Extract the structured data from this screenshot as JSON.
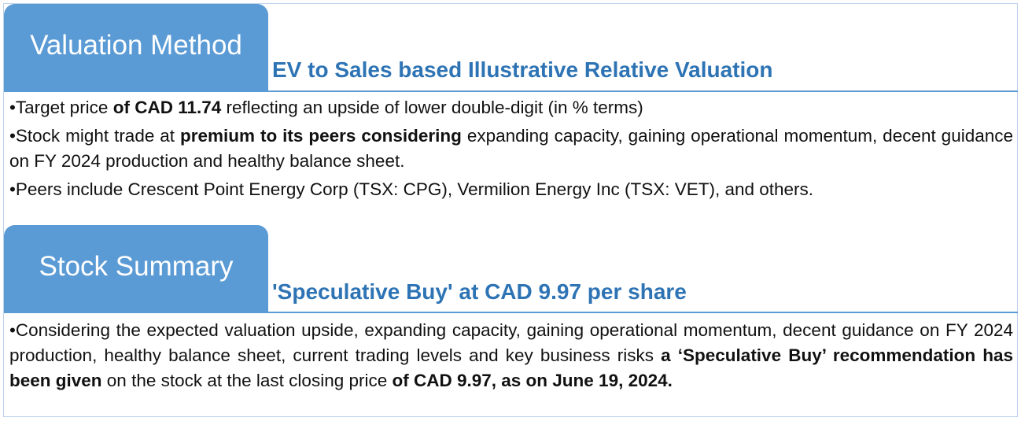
{
  "valuation": {
    "tab_label": "Valuation Method",
    "subtitle": "EV to Sales based Illustrative Relative Valuation",
    "bullets": [
      [
        {
          "t": "Target price ",
          "b": false
        },
        {
          "t": "of CAD 11.74",
          "b": true
        },
        {
          "t": " reflecting an upside of lower double-digit (in % terms)",
          "b": false
        }
      ],
      [
        {
          "t": "Stock might trade at ",
          "b": false
        },
        {
          "t": "premium to its peers considering",
          "b": true
        },
        {
          "t": " expanding capacity, gaining operational momentum, decent guidance on FY 2024 production and healthy balance sheet.",
          "b": false
        }
      ],
      [
        {
          "t": "Peers include Crescent Point Energy Corp (TSX: CPG), Vermilion Energy Inc (TSX: VET), and others.",
          "b": false
        }
      ]
    ]
  },
  "summary": {
    "tab_label": "Stock Summary",
    "subtitle": "'Speculative Buy' at CAD 9.97 per share",
    "bullets": [
      [
        {
          "t": "Considering the expected valuation upside, expanding capacity, gaining operational momentum, decent guidance on FY 2024 production, healthy balance sheet, current trading levels and key business risks ",
          "b": false
        },
        {
          "t": "a ‘Speculative Buy’ recommendation has been given",
          "b": true
        },
        {
          "t": " on the stock at the last closing price ",
          "b": false
        },
        {
          "t": "of CAD 9.97, as on June 19, 2024.",
          "b": true
        }
      ]
    ]
  },
  "colors": {
    "accent_blue": "#5b9bd5",
    "subtitle_blue": "#2e74b5"
  }
}
